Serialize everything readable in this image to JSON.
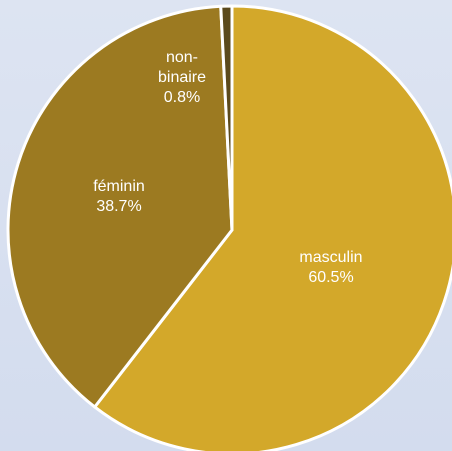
{
  "chart_data": {
    "type": "pie",
    "categories": [
      "masculin",
      "féminin",
      "non-binaire"
    ],
    "values": [
      60.5,
      38.7,
      0.8
    ],
    "value_labels": [
      "60.5%",
      "38.7%",
      "0.8%"
    ],
    "colors": [
      "#d3a82a",
      "#9c7a21",
      "#5b4a1c"
    ]
  }
}
